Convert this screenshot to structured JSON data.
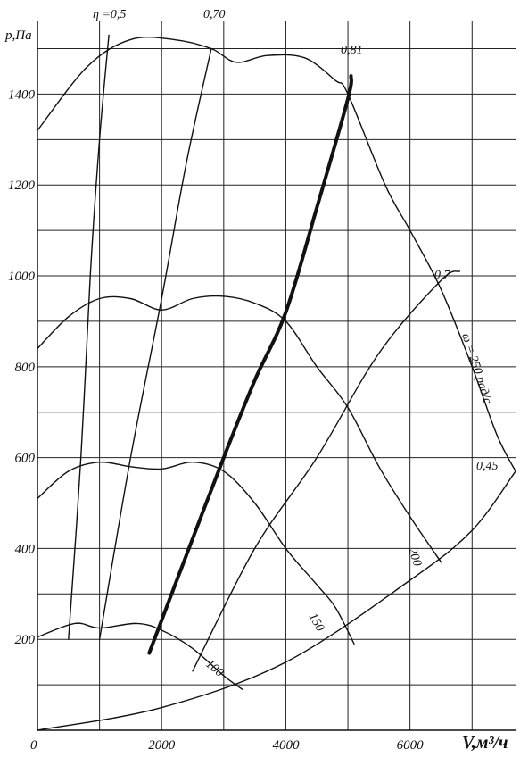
{
  "chart_data": {
    "type": "line",
    "title": "",
    "ylabel": "p,Па",
    "xlabel": "V,м³/ч",
    "xlim": [
      0,
      7700
    ],
    "ylim": [
      0,
      1560
    ],
    "x_ticks": [
      {
        "value": 0,
        "label": "0"
      },
      {
        "value": 2000,
        "label": "2000"
      },
      {
        "value": 4000,
        "label": "4000"
      },
      {
        "value": 6000,
        "label": "6000"
      }
    ],
    "y_ticks": [
      {
        "value": 200,
        "label": "200"
      },
      {
        "value": 400,
        "label": "400"
      },
      {
        "value": 600,
        "label": "600"
      },
      {
        "value": 800,
        "label": "800"
      },
      {
        "value": 1000,
        "label": "1000"
      },
      {
        "value": 1200,
        "label": "1200"
      },
      {
        "value": 1400,
        "label": "1400"
      }
    ],
    "grid_x": [
      1000,
      2000,
      3000,
      4000,
      5000,
      6000,
      7000
    ],
    "grid_y": [
      100,
      200,
      300,
      400,
      500,
      600,
      700,
      800,
      900,
      1000,
      1100,
      1200,
      1300,
      1400,
      1500
    ],
    "speed_curves": [
      {
        "label": "ω = 250 рад/с",
        "points": [
          [
            0,
            1320
          ],
          [
            800,
            1460
          ],
          [
            1500,
            1520
          ],
          [
            2200,
            1520
          ],
          [
            2800,
            1500
          ],
          [
            3200,
            1470
          ],
          [
            3700,
            1485
          ],
          [
            4300,
            1480
          ],
          [
            4800,
            1430
          ],
          [
            5000,
            1400
          ],
          [
            5600,
            1200
          ],
          [
            6000,
            1100
          ],
          [
            6500,
            970
          ],
          [
            7000,
            800
          ],
          [
            7400,
            650
          ],
          [
            7700,
            570
          ]
        ]
      },
      {
        "label": "200",
        "points": [
          [
            0,
            840
          ],
          [
            500,
            910
          ],
          [
            1000,
            950
          ],
          [
            1500,
            950
          ],
          [
            2000,
            925
          ],
          [
            2500,
            950
          ],
          [
            3000,
            955
          ],
          [
            3500,
            940
          ],
          [
            4000,
            900
          ],
          [
            4500,
            800
          ],
          [
            5000,
            710
          ],
          [
            5500,
            580
          ],
          [
            6000,
            470
          ],
          [
            6500,
            370
          ]
        ]
      },
      {
        "label": "150",
        "points": [
          [
            0,
            510
          ],
          [
            500,
            570
          ],
          [
            1000,
            590
          ],
          [
            1500,
            580
          ],
          [
            2000,
            575
          ],
          [
            2500,
            590
          ],
          [
            3000,
            570
          ],
          [
            3500,
            500
          ],
          [
            4000,
            400
          ],
          [
            4500,
            320
          ],
          [
            4800,
            270
          ],
          [
            5100,
            190
          ]
        ]
      },
      {
        "label": "100",
        "points": [
          [
            0,
            205
          ],
          [
            600,
            235
          ],
          [
            1000,
            225
          ],
          [
            1600,
            235
          ],
          [
            2000,
            220
          ],
          [
            2500,
            180
          ],
          [
            3000,
            120
          ],
          [
            3300,
            90
          ]
        ]
      }
    ],
    "efficiency_curves": [
      {
        "label": "η =0,5",
        "points": [
          [
            500,
            200
          ],
          [
            700,
            600
          ],
          [
            850,
            1000
          ],
          [
            1000,
            1300
          ],
          [
            1150,
            1530
          ]
        ]
      },
      {
        "label": "0,70",
        "points": [
          [
            1000,
            200
          ],
          [
            1500,
            600
          ],
          [
            2000,
            950
          ],
          [
            2400,
            1250
          ],
          [
            2800,
            1500
          ]
        ]
      },
      {
        "label": "0,81",
        "points": [
          [
            1800,
            170
          ],
          [
            2300,
            350
          ],
          [
            3000,
            600
          ],
          [
            3500,
            770
          ],
          [
            4000,
            920
          ],
          [
            4500,
            1150
          ],
          [
            5000,
            1390
          ],
          [
            5050,
            1440
          ]
        ],
        "bold": true
      },
      {
        "label": "0,7",
        "points": [
          [
            2500,
            130
          ],
          [
            3500,
            400
          ],
          [
            4500,
            600
          ],
          [
            5500,
            830
          ],
          [
            6500,
            990
          ],
          [
            6800,
            1010
          ]
        ]
      },
      {
        "label": "0,45",
        "points": [
          [
            0,
            0
          ],
          [
            2000,
            50
          ],
          [
            4000,
            150
          ],
          [
            6000,
            330
          ],
          [
            7000,
            440
          ],
          [
            7700,
            570
          ]
        ]
      }
    ]
  }
}
